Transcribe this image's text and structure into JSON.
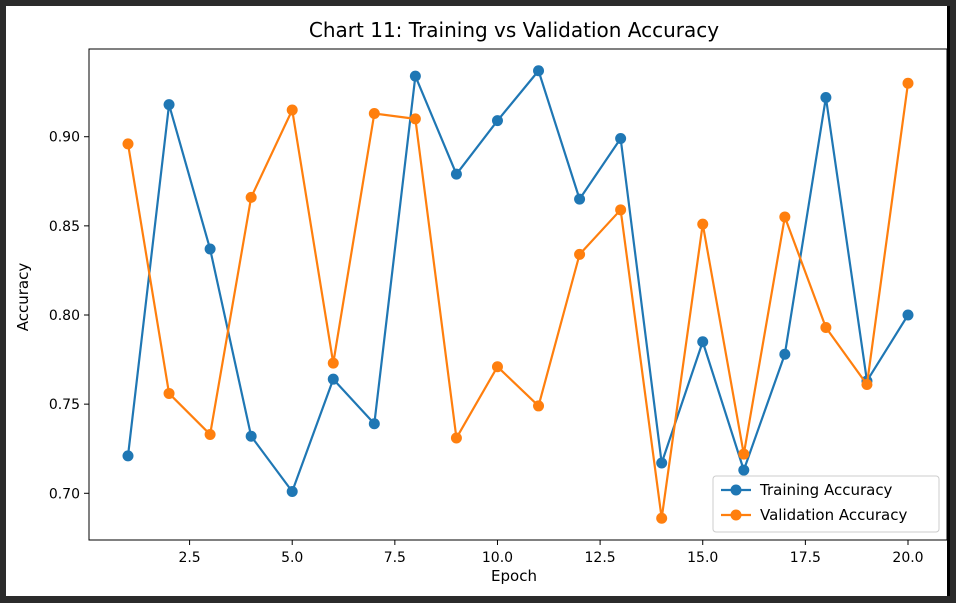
{
  "chart_data": {
    "type": "line",
    "title": "Chart 11: Training vs Validation Accuracy",
    "xlabel": "Epoch",
    "ylabel": "Accuracy",
    "x": [
      1,
      2,
      3,
      4,
      5,
      6,
      7,
      8,
      9,
      10,
      11,
      12,
      13,
      14,
      15,
      16,
      17,
      18,
      19,
      20
    ],
    "series": [
      {
        "name": "Training Accuracy",
        "color": "#1f77b4",
        "values": [
          0.721,
          0.918,
          0.837,
          0.732,
          0.701,
          0.764,
          0.739,
          0.934,
          0.879,
          0.909,
          0.937,
          0.865,
          0.899,
          0.717,
          0.785,
          0.713,
          0.778,
          0.922,
          0.763,
          0.8
        ]
      },
      {
        "name": "Validation Accuracy",
        "color": "#ff7f0e",
        "values": [
          0.896,
          0.756,
          0.733,
          0.866,
          0.915,
          0.773,
          0.913,
          0.91,
          0.731,
          0.771,
          0.749,
          0.834,
          0.859,
          0.686,
          0.851,
          0.722,
          0.855,
          0.793,
          0.761,
          0.93
        ]
      }
    ],
    "xticks": [
      "2.5",
      "5.0",
      "7.5",
      "10.0",
      "12.5",
      "15.0",
      "17.5",
      "20.0"
    ],
    "yticks": [
      "0.70",
      "0.75",
      "0.80",
      "0.85",
      "0.90"
    ],
    "xlim": [
      0.05,
      20.95
    ],
    "ylim": [
      0.6738,
      0.9492
    ],
    "grid": false,
    "legend_position": "lower-right"
  }
}
